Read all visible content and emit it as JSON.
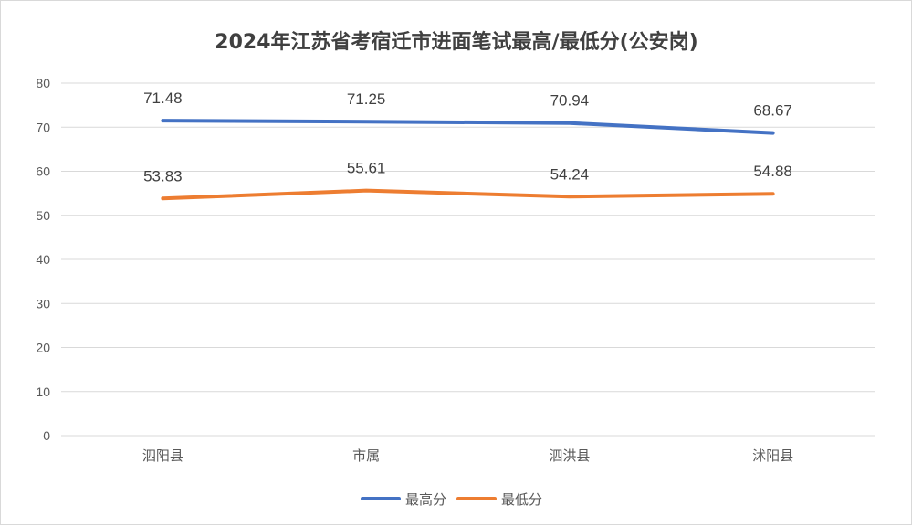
{
  "chart_data": {
    "type": "line",
    "title": "2024年江苏省考宿迁市进面笔试最高/最低分(公安岗)",
    "xlabel": "",
    "ylabel": "",
    "categories": [
      "泗阳县",
      "市属",
      "泗洪县",
      "沭阳县"
    ],
    "series": [
      {
        "name": "最高分",
        "values": [
          71.48,
          71.25,
          70.94,
          68.67
        ],
        "color": "#4472C4"
      },
      {
        "name": "最低分",
        "values": [
          53.83,
          55.61,
          54.24,
          54.88
        ],
        "color": "#ED7D31"
      }
    ],
    "ylim": [
      0,
      80
    ],
    "yticks": [
      0,
      10,
      20,
      30,
      40,
      50,
      60,
      70,
      80
    ],
    "grid": true,
    "legend": "bottom",
    "data_labels": true
  }
}
